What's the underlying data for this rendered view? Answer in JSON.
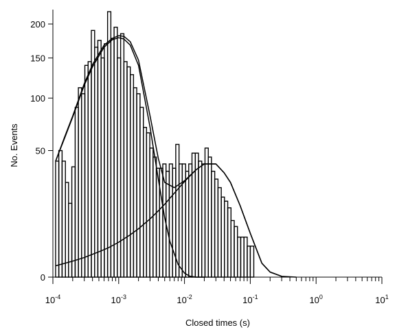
{
  "chart_data": {
    "type": "line",
    "title": "",
    "xlabel": "Closed times (s)",
    "ylabel": "No. Events",
    "x_scale": "log",
    "y_scale": "sqrt",
    "xlim": [
      0.0001,
      10
    ],
    "ylim": [
      0,
      220
    ],
    "grid": false,
    "legend": "none",
    "x_tick_labels": [
      {
        "value": 0.0001,
        "base": "10",
        "exp": "-4"
      },
      {
        "value": 0.001,
        "base": "10",
        "exp": "-3"
      },
      {
        "value": 0.01,
        "base": "10",
        "exp": "-2"
      },
      {
        "value": 0.1,
        "base": "10",
        "exp": "-1"
      },
      {
        "value": 1,
        "base": "10",
        "exp": "0"
      },
      {
        "value": 10,
        "base": "10",
        "exp": "1"
      }
    ],
    "y_ticks": [
      0,
      50,
      100,
      150,
      200
    ],
    "histogram": {
      "bin_edges": [
        0.00011,
        0.000123,
        0.000138,
        0.000155,
        0.000173,
        0.000194,
        0.000218,
        0.000244,
        0.000273,
        0.000306,
        0.000343,
        0.000384,
        0.000431,
        0.000482,
        0.00054,
        0.000605,
        0.000678,
        0.00076,
        0.000851,
        0.000953,
        0.00107,
        0.0012,
        0.00134,
        0.0015,
        0.00168,
        0.00188,
        0.00211,
        0.00237,
        0.00265,
        0.00297,
        0.00333,
        0.00373,
        0.00418,
        0.00468,
        0.00524,
        0.00587,
        0.00658,
        0.00737,
        0.00826,
        0.00925,
        0.0104,
        0.0116,
        0.013,
        0.0146,
        0.0163,
        0.0183,
        0.0205,
        0.023,
        0.0257,
        0.0288,
        0.0323,
        0.0362,
        0.0405,
        0.0454,
        0.0509,
        0.057,
        0.0638,
        0.0715,
        0.0801,
        0.0898,
        0.1,
        0.113,
        0.126,
        0.141
      ],
      "counts": [
        42,
        50,
        42,
        28,
        17,
        38,
        90,
        112,
        105,
        140,
        145,
        190,
        165,
        175,
        150,
        170,
        220,
        178,
        195,
        150,
        185,
        145,
        138,
        128,
        112,
        105,
        90,
        70,
        65,
        52,
        45,
        37,
        37,
        40,
        35,
        40,
        37,
        55,
        40,
        40,
        35,
        40,
        48,
        48,
        42,
        40,
        52,
        45,
        35,
        30,
        25,
        20,
        18,
        15,
        10,
        8,
        5,
        5,
        5,
        3,
        3,
        0,
        0
      ]
    },
    "series": [
      {
        "x": [
          0.00011,
          0.00015,
          0.0002,
          0.0003,
          0.0004,
          0.0006,
          0.0008,
          0.001,
          0.0012,
          0.0015,
          0.002,
          0.003,
          0.004,
          0.005,
          0.006,
          0.008,
          0.01,
          0.012,
          0.015,
          0.02
        ],
        "y": [
          42,
          60,
          80,
          115,
          138,
          165,
          176,
          179,
          177,
          168,
          140,
          70,
          30,
          11,
          4,
          0.5,
          0.05,
          0.003,
          0,
          0
        ]
      },
      {
        "x": [
          0.00011,
          0.0002,
          0.0003,
          0.0005,
          0.0007,
          0.001,
          0.0015,
          0.002,
          0.003,
          0.004,
          0.005,
          0.007,
          0.01,
          0.015,
          0.02,
          0.03,
          0.04,
          0.05,
          0.07,
          0.1,
          0.15,
          0.2,
          0.3,
          0.5
        ],
        "y": [
          0.4,
          0.8,
          1.2,
          2.0,
          2.7,
          3.8,
          5.6,
          7.3,
          10.6,
          13.7,
          16.6,
          22,
          28.5,
          36,
          40,
          40,
          34,
          28,
          16,
          6,
          0.6,
          0.08,
          0.002,
          0
        ]
      },
      {
        "x": [
          0.00011,
          0.00015,
          0.0002,
          0.0003,
          0.0004,
          0.0006,
          0.0008,
          0.001,
          0.0012,
          0.0015,
          0.002,
          0.003,
          0.004,
          0.005,
          0.007,
          0.01,
          0.015,
          0.02,
          0.03,
          0.04,
          0.05,
          0.07,
          0.1,
          0.15,
          0.2,
          0.3
        ],
        "y": [
          42,
          61,
          81,
          117,
          141,
          168,
          178,
          182,
          181,
          173,
          147,
          81,
          44,
          28,
          25,
          29,
          36,
          40,
          40,
          34,
          28,
          16,
          6,
          0.6,
          0.08,
          0.002
        ]
      }
    ]
  }
}
